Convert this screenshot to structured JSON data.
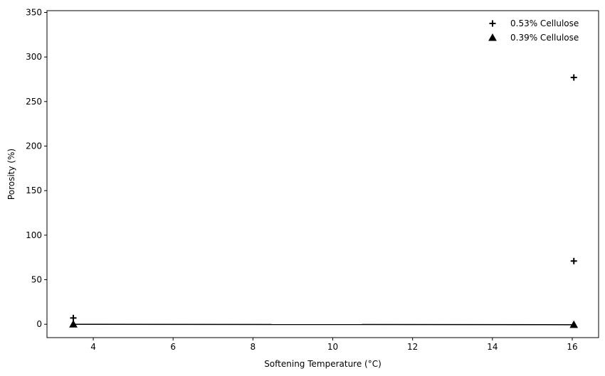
{
  "chart_data": {
    "type": "scatter",
    "xlabel": "Softening Temperature (°C)",
    "ylabel": "Porosity (%)",
    "xlim": [
      2.84,
      16.66
    ],
    "ylim": [
      -15,
      352
    ],
    "x_ticks": [
      4,
      6,
      8,
      10,
      12,
      14,
      16
    ],
    "y_ticks": [
      0,
      50,
      100,
      150,
      200,
      250,
      300,
      350
    ],
    "grid": false,
    "legend_position": "top-right",
    "series": [
      {
        "name": "0.53% Cellulose",
        "marker": "plus",
        "color": "#000000",
        "points": [
          {
            "x": 3.5,
            "y": 7
          },
          {
            "x": 16.04,
            "y": 71
          },
          {
            "x": 16.04,
            "y": 277
          }
        ]
      },
      {
        "name": "0.39% Cellulose",
        "marker": "triangle",
        "color": "#000000",
        "points": [
          {
            "x": 3.5,
            "y": 0
          },
          {
            "x": 16.04,
            "y": -0.5
          }
        ]
      }
    ],
    "lines": [
      {
        "color": "#000000",
        "points": [
          {
            "x": 3.5,
            "y": 0
          },
          {
            "x": 16.04,
            "y": -0.5
          }
        ]
      }
    ]
  }
}
